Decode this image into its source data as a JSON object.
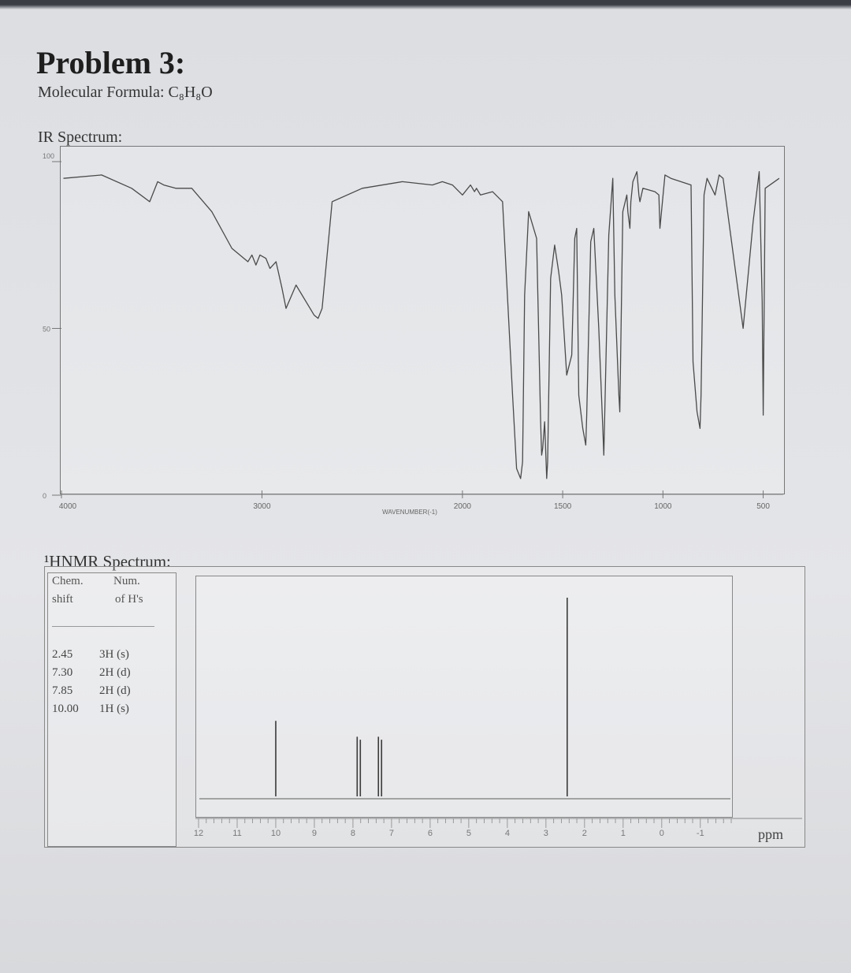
{
  "header": {
    "title": "Problem 3:",
    "formula_label": "Molecular Formula: ",
    "formula": "C₈H₈O"
  },
  "ir": {
    "label": "IR Spectrum:",
    "y_ticks": [
      "100",
      "50",
      "0"
    ],
    "x_ticks": [
      "4000",
      "3000",
      "2000",
      "1500",
      "1000",
      "500"
    ],
    "x_axis_label": "WAVENUMBER(-1)"
  },
  "nmr": {
    "label": "¹HNMR Spectrum:",
    "table": {
      "col1_line1": "Chem.",
      "col1_line2": "shift",
      "col2_line1": "Num.",
      "col2_line2": "of H's",
      "rows": [
        {
          "shift": "2.45",
          "h": "3H (s)"
        },
        {
          "shift": "7.30",
          "h": "2H (d)"
        },
        {
          "shift": "7.85",
          "h": "2H (d)"
        },
        {
          "shift": "10.00",
          "h": "1H (s)"
        }
      ]
    },
    "x_ticks": [
      "12",
      "11",
      "10",
      "9",
      "8",
      "7",
      "6",
      "5",
      "4",
      "3",
      "2",
      "1",
      "0",
      "-1"
    ],
    "x_unit": "ppm"
  },
  "chart_data": [
    {
      "type": "line",
      "x_range": [
        4000,
        400
      ],
      "ylim": [
        0,
        100
      ],
      "x_ticks": [
        4000,
        3000,
        2000,
        1500,
        1000,
        500
      ],
      "y_ticks": [
        100,
        50,
        0
      ],
      "xlabel": "WAVENUMBER(-1)",
      "series": [
        {
          "x": [
            3990,
            3800,
            3650,
            3560,
            3520,
            3490,
            3430,
            3350,
            3250,
            3150,
            3070,
            3050,
            3030,
            3010,
            2980,
            2960,
            2930,
            2900,
            2880,
            2830,
            2760,
            2740,
            2720,
            2700,
            2650,
            2500,
            2300,
            2150,
            2100,
            2050,
            2000,
            1960,
            1940,
            1930,
            1910,
            1850,
            1800,
            1750,
            1730,
            1710,
            1700,
            1690,
            1670,
            1630,
            1610,
            1605,
            1600,
            1590,
            1580,
            1575,
            1560,
            1540,
            1520,
            1505,
            1480,
            1455,
            1440,
            1430,
            1420,
            1400,
            1385,
            1380,
            1360,
            1345,
            1320,
            1300,
            1295,
            1270,
            1250,
            1240,
            1220,
            1215,
            1200,
            1180,
            1175,
            1165,
            1160,
            1150,
            1130,
            1120,
            1115,
            1100,
            1040,
            1020,
            1015,
            990,
            960,
            860,
            850,
            830,
            815,
            810,
            795,
            780,
            740,
            720,
            700,
            600,
            550,
            520,
            505,
            500,
            490,
            420
          ],
          "y": [
            95,
            96,
            92,
            88,
            94,
            93,
            92,
            92,
            85,
            74,
            70,
            72,
            69,
            72,
            71,
            68,
            70,
            62,
            56,
            63,
            56,
            54,
            53,
            56,
            88,
            92,
            94,
            93,
            94,
            93,
            90,
            93,
            91,
            92,
            90,
            91,
            88,
            30,
            8,
            5,
            10,
            60,
            85,
            77,
            22,
            12,
            14,
            22,
            5,
            10,
            65,
            75,
            67,
            60,
            36,
            42,
            77,
            80,
            30,
            20,
            15,
            24,
            76,
            80,
            50,
            20,
            12,
            78,
            95,
            60,
            30,
            25,
            85,
            90,
            85,
            80,
            88,
            94,
            97,
            90,
            88,
            92,
            91,
            90,
            80,
            96,
            95,
            93,
            40,
            25,
            20,
            30,
            90,
            95,
            90,
            96,
            95,
            50,
            82,
            97,
            58,
            24,
            92,
            95
          ]
        }
      ]
    },
    {
      "type": "line",
      "x_range": [
        12,
        -1.8
      ],
      "x_ticks": [
        12,
        11,
        10,
        9,
        8,
        7,
        6,
        5,
        4,
        3,
        2,
        1,
        0,
        -1
      ],
      "xlabel": "ppm",
      "series": [
        {
          "peaks": [
            {
              "shift": 10.0,
              "height": 0.38,
              "mult": "s"
            },
            {
              "shift": 7.85,
              "height": 0.3,
              "mult": "d"
            },
            {
              "shift": 7.3,
              "height": 0.3,
              "mult": "d"
            },
            {
              "shift": 2.45,
              "height": 1.0,
              "mult": "s"
            }
          ]
        }
      ]
    }
  ]
}
